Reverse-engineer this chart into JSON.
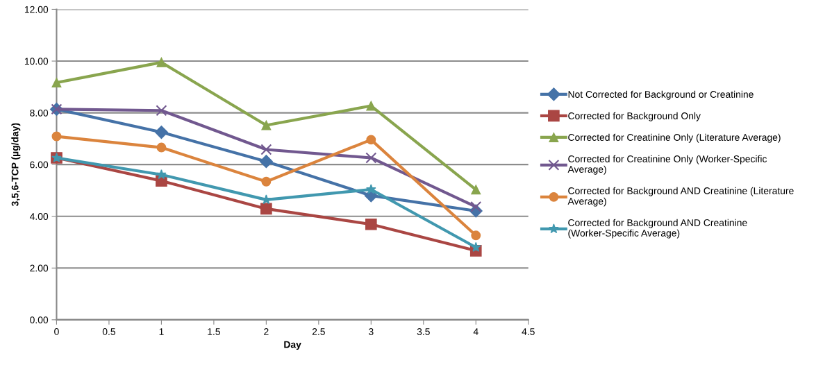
{
  "chart_data": {
    "type": "line",
    "xlabel": "Day",
    "ylabel": "3,5,6-TCP (µg/day)",
    "x": [
      0,
      1,
      2,
      3,
      4
    ],
    "xlim": [
      0,
      4.5
    ],
    "xticks": [
      0,
      0.5,
      1,
      1.5,
      2,
      2.5,
      3,
      3.5,
      4,
      4.5
    ],
    "ylim": [
      0,
      12
    ],
    "yticks": [
      {
        "value": 0,
        "label": "0.00"
      },
      {
        "value": 2,
        "label": "2.00"
      },
      {
        "value": 4,
        "label": "4.00"
      },
      {
        "value": 6,
        "label": "6.00"
      },
      {
        "value": 8,
        "label": "8.00"
      },
      {
        "value": 10,
        "label": "10.00"
      },
      {
        "value": 12,
        "label": "12.00"
      }
    ],
    "grid": "y",
    "legend": "right",
    "line_style": "solid",
    "series": [
      {
        "name": "Not Corrected for Background or Creatinine",
        "color": "#4572a7",
        "marker": "diamond",
        "values": [
          8.14,
          7.25,
          6.12,
          4.8,
          4.21
        ]
      },
      {
        "name": "Corrected for Background Only",
        "color": "#aa4643",
        "marker": "square",
        "values": [
          6.26,
          5.37,
          4.29,
          3.69,
          2.67
        ]
      },
      {
        "name": "Corrected for Creatinine Only (Literature Average)",
        "color": "#89a54e",
        "marker": "triangle",
        "values": [
          9.17,
          9.95,
          7.52,
          8.27,
          5.03
        ]
      },
      {
        "name": "Corrected for Creatinine Only (Worker-Specific Average)",
        "color": "#71588f",
        "marker": "cross",
        "values": [
          8.14,
          8.09,
          6.58,
          6.26,
          4.37
        ]
      },
      {
        "name": "Corrected for Background AND Creatinine (Literature Average)",
        "color": "#db843d",
        "marker": "circle",
        "values": [
          7.09,
          6.66,
          5.34,
          6.96,
          3.26
        ]
      },
      {
        "name": "Corrected for Background AND Creatinine (Worker-Specific Average)",
        "color": "#4198af",
        "marker": "star",
        "values": [
          6.26,
          5.61,
          4.64,
          5.04,
          2.8
        ]
      }
    ]
  }
}
